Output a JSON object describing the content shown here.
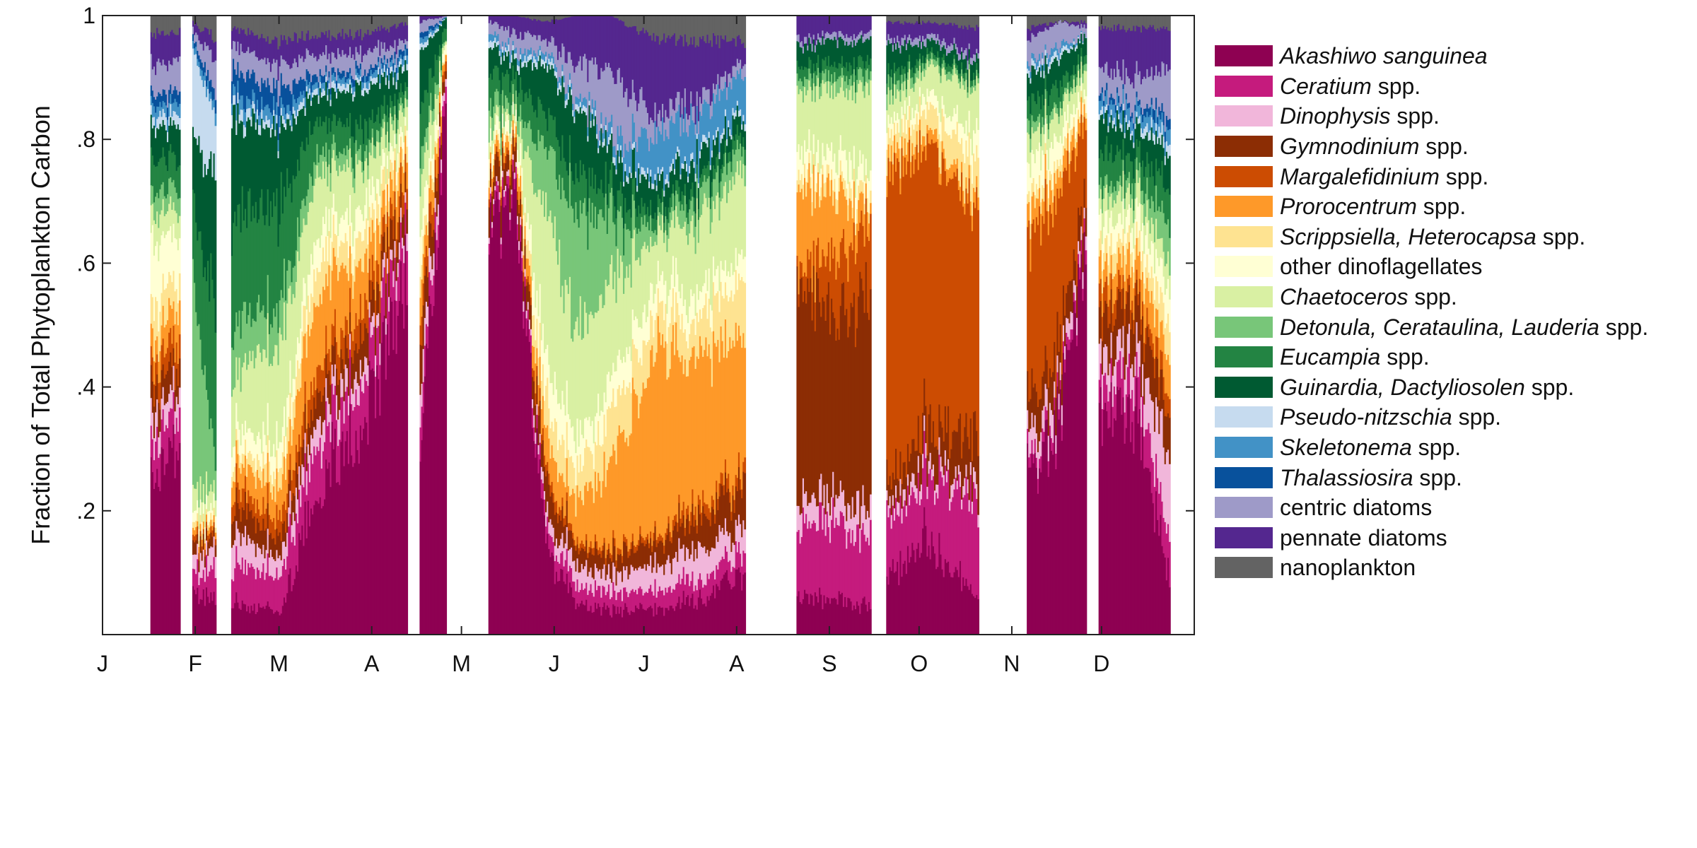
{
  "chart_data": {
    "type": "area",
    "stacked": true,
    "normalized": true,
    "title": "",
    "xlabel": "",
    "ylabel": "Fraction of Total Phytoplankton Carbon",
    "ylim": [
      0,
      1
    ],
    "yticks": [
      0.2,
      0.4,
      0.6,
      0.8,
      1
    ],
    "ytick_labels": [
      ".2",
      ".4",
      ".6",
      ".8",
      "1"
    ],
    "xlim": [
      0,
      365
    ],
    "month_ticks": [
      {
        "day": 0,
        "label": "J"
      },
      {
        "day": 31,
        "label": "F"
      },
      {
        "day": 59,
        "label": "M"
      },
      {
        "day": 90,
        "label": "A"
      },
      {
        "day": 120,
        "label": "M"
      },
      {
        "day": 151,
        "label": "J"
      },
      {
        "day": 181,
        "label": "J"
      },
      {
        "day": 212,
        "label": "A"
      },
      {
        "day": 243,
        "label": "S"
      },
      {
        "day": 273,
        "label": "O"
      },
      {
        "day": 304,
        "label": "N"
      },
      {
        "day": 334,
        "label": "D"
      }
    ],
    "grid": false,
    "legend_position": "right",
    "series": [
      {
        "name": "Akashiwo sanguinea",
        "italic": "Akashiwo sanguinea",
        "suffix": "",
        "color": "#8E0152"
      },
      {
        "name": "Ceratium spp.",
        "italic": "Ceratium",
        "suffix": " spp.",
        "color": "#C51B7D"
      },
      {
        "name": "Dinophysis spp.",
        "italic": "Dinophysis",
        "suffix": " spp.",
        "color": "#F1B6DA"
      },
      {
        "name": "Gymnodinium spp.",
        "italic": "Gymnodinium",
        "suffix": " spp.",
        "color": "#8C2D04"
      },
      {
        "name": "Margalefidinium spp.",
        "italic": "Margalefidinium",
        "suffix": " spp.",
        "color": "#CC4C02"
      },
      {
        "name": "Prorocentrum spp.",
        "italic": "Prorocentrum",
        "suffix": " spp.",
        "color": "#FE9929"
      },
      {
        "name": "Scrippsiella, Heterocapsa spp.",
        "italic": "Scrippsiella, Heterocapsa",
        "suffix": " spp.",
        "color": "#FEE391"
      },
      {
        "name": "other dinoflagellates",
        "italic": "",
        "suffix": "other dinoflagellates",
        "color": "#FFFFD4"
      },
      {
        "name": "Chaetoceros spp.",
        "italic": "Chaetoceros",
        "suffix": " spp.",
        "color": "#D9F0A3"
      },
      {
        "name": "Detonula, Cerataulina, Lauderia spp.",
        "italic": "Detonula, Cerataulina, Lauderia",
        "suffix": " spp.",
        "color": "#78C679"
      },
      {
        "name": "Eucampia spp.",
        "italic": "Eucampia",
        "suffix": " spp.",
        "color": "#238443"
      },
      {
        "name": "Guinardia, Dactyliosolen spp.",
        "italic": "Guinardia, Dactyliosolen",
        "suffix": " spp.",
        "color": "#005A32"
      },
      {
        "name": "Pseudo-nitzschia spp.",
        "italic": "Pseudo-nitzschia",
        "suffix": " spp.",
        "color": "#C6DBEF"
      },
      {
        "name": "Skeletonema spp.",
        "italic": "Skeletonema",
        "suffix": " spp.",
        "color": "#4292C6"
      },
      {
        "name": "Thalassiosira spp.",
        "italic": "Thalassiosira",
        "suffix": " spp.",
        "color": "#08519C"
      },
      {
        "name": "centric diatoms",
        "italic": "",
        "suffix": "centric diatoms",
        "color": "#9E9AC8"
      },
      {
        "name": "pennate diatoms",
        "italic": "",
        "suffix": "pennate diatoms",
        "color": "#54278F"
      },
      {
        "name": "nanoplankton",
        "italic": "",
        "suffix": "nanoplankton",
        "color": "#636363"
      }
    ],
    "segments": [
      {
        "start": 16,
        "end": 26
      },
      {
        "start": 30,
        "end": 38
      },
      {
        "start": 43,
        "end": 102
      },
      {
        "start": 106,
        "end": 115
      },
      {
        "start": 129,
        "end": 215
      },
      {
        "start": 232,
        "end": 257
      },
      {
        "start": 262,
        "end": 293
      },
      {
        "start": 309,
        "end": 329
      },
      {
        "start": 333,
        "end": 357
      }
    ],
    "profiles": [
      {
        "day": 16,
        "values": [
          0.26,
          0.06,
          0.04,
          0.06,
          0.04,
          0.04,
          0.06,
          0.1,
          0.05,
          0.04,
          0.06,
          0.06,
          0.02,
          0.02,
          0.02,
          0.05,
          0.05,
          0.03
        ]
      },
      {
        "day": 26,
        "values": [
          0.35,
          0.06,
          0.04,
          0.04,
          0.04,
          0.06,
          0.05,
          0.08,
          0.04,
          0.04,
          0.05,
          0.06,
          0.02,
          0.02,
          0.02,
          0.05,
          0.05,
          0.03
        ]
      },
      {
        "day": 30,
        "values": [
          0.06,
          0.03,
          0.03,
          0.02,
          0.01,
          0.01,
          0.01,
          0.02,
          0.04,
          0.36,
          0.1,
          0.1,
          0.16,
          0.01,
          0.01,
          0.01,
          0.01,
          0.01
        ]
      },
      {
        "day": 38,
        "values": [
          0.06,
          0.05,
          0.03,
          0.02,
          0.01,
          0.01,
          0.01,
          0.02,
          0.03,
          0.02,
          0.28,
          0.22,
          0.07,
          0.02,
          0.02,
          0.06,
          0.04,
          0.04
        ]
      },
      {
        "day": 43,
        "values": [
          0.05,
          0.06,
          0.05,
          0.05,
          0.03,
          0.04,
          0.02,
          0.04,
          0.08,
          0.08,
          0.17,
          0.16,
          0.02,
          0.02,
          0.04,
          0.04,
          0.03,
          0.02
        ]
      },
      {
        "day": 59,
        "values": [
          0.04,
          0.06,
          0.03,
          0.03,
          0.03,
          0.05,
          0.03,
          0.04,
          0.16,
          0.06,
          0.16,
          0.12,
          0.01,
          0.02,
          0.04,
          0.04,
          0.04,
          0.04
        ]
      },
      {
        "day": 72,
        "values": [
          0.24,
          0.08,
          0.04,
          0.04,
          0.04,
          0.12,
          0.05,
          0.05,
          0.1,
          0.03,
          0.05,
          0.04,
          0.01,
          0.01,
          0.01,
          0.03,
          0.03,
          0.03
        ]
      },
      {
        "day": 88,
        "values": [
          0.36,
          0.07,
          0.03,
          0.05,
          0.04,
          0.07,
          0.04,
          0.04,
          0.06,
          0.02,
          0.04,
          0.06,
          0.01,
          0.01,
          0.01,
          0.03,
          0.03,
          0.03
        ]
      },
      {
        "day": 102,
        "values": [
          0.6,
          0.08,
          0.02,
          0.04,
          0.03,
          0.03,
          0.02,
          0.02,
          0.03,
          0.01,
          0.02,
          0.03,
          0.01,
          0.01,
          0.01,
          0.01,
          0.03,
          0.01
        ]
      },
      {
        "day": 106,
        "values": [
          0.3,
          0.05,
          0.05,
          0.08,
          0.04,
          0.05,
          0.03,
          0.06,
          0.08,
          0.04,
          0.08,
          0.08,
          0.01,
          0.01,
          0.01,
          0.02,
          0.01,
          0.0
        ]
      },
      {
        "day": 115,
        "values": [
          0.9,
          0.02,
          0.01,
          0.01,
          0.01,
          0.01,
          0.0,
          0.01,
          0.0,
          0.0,
          0.01,
          0.01,
          0.0,
          0.0,
          0.0,
          0.0,
          0.0,
          0.0
        ]
      },
      {
        "day": 129,
        "values": [
          0.66,
          0.02,
          0.01,
          0.04,
          0.01,
          0.02,
          0.01,
          0.03,
          0.02,
          0.04,
          0.05,
          0.04,
          0.01,
          0.01,
          0.0,
          0.02,
          0.01,
          0.0
        ]
      },
      {
        "day": 138,
        "values": [
          0.7,
          0.02,
          0.01,
          0.03,
          0.01,
          0.02,
          0.01,
          0.02,
          0.01,
          0.02,
          0.04,
          0.03,
          0.01,
          0.01,
          0.0,
          0.03,
          0.03,
          0.0
        ]
      },
      {
        "day": 148,
        "values": [
          0.14,
          0.03,
          0.02,
          0.05,
          0.02,
          0.05,
          0.06,
          0.07,
          0.24,
          0.1,
          0.06,
          0.08,
          0.01,
          0.01,
          0.0,
          0.02,
          0.03,
          0.01
        ]
      },
      {
        "day": 158,
        "values": [
          0.05,
          0.03,
          0.03,
          0.03,
          0.01,
          0.06,
          0.05,
          0.05,
          0.18,
          0.2,
          0.06,
          0.1,
          0.01,
          0.01,
          0.0,
          0.05,
          0.08,
          0.0
        ]
      },
      {
        "day": 170,
        "values": [
          0.04,
          0.03,
          0.03,
          0.03,
          0.01,
          0.14,
          0.08,
          0.05,
          0.16,
          0.1,
          0.04,
          0.06,
          0.01,
          0.02,
          0.0,
          0.1,
          0.1,
          0.0
        ]
      },
      {
        "day": 185,
        "values": [
          0.04,
          0.03,
          0.04,
          0.04,
          0.01,
          0.3,
          0.06,
          0.05,
          0.08,
          0.02,
          0.02,
          0.04,
          0.01,
          0.07,
          0.0,
          0.03,
          0.12,
          0.04
        ]
      },
      {
        "day": 200,
        "values": [
          0.06,
          0.03,
          0.05,
          0.05,
          0.02,
          0.24,
          0.06,
          0.04,
          0.12,
          0.04,
          0.02,
          0.04,
          0.01,
          0.06,
          0.0,
          0.02,
          0.1,
          0.04
        ]
      },
      {
        "day": 215,
        "values": [
          0.1,
          0.04,
          0.04,
          0.07,
          0.02,
          0.2,
          0.1,
          0.04,
          0.14,
          0.04,
          0.02,
          0.03,
          0.01,
          0.06,
          0.0,
          0.02,
          0.03,
          0.04
        ]
      },
      {
        "day": 232,
        "values": [
          0.06,
          0.12,
          0.04,
          0.34,
          0.02,
          0.14,
          0.02,
          0.04,
          0.1,
          0.02,
          0.02,
          0.03,
          0.0,
          0.0,
          0.0,
          0.01,
          0.04,
          0.0
        ]
      },
      {
        "day": 245,
        "values": [
          0.06,
          0.12,
          0.04,
          0.3,
          0.1,
          0.1,
          0.02,
          0.04,
          0.1,
          0.02,
          0.02,
          0.04,
          0.0,
          0.0,
          0.0,
          0.01,
          0.03,
          0.0
        ]
      },
      {
        "day": 257,
        "values": [
          0.04,
          0.12,
          0.05,
          0.38,
          0.1,
          0.02,
          0.02,
          0.04,
          0.12,
          0.02,
          0.02,
          0.03,
          0.0,
          0.0,
          0.0,
          0.01,
          0.03,
          0.0
        ]
      },
      {
        "day": 262,
        "values": [
          0.08,
          0.1,
          0.02,
          0.04,
          0.5,
          0.03,
          0.03,
          0.02,
          0.04,
          0.02,
          0.02,
          0.05,
          0.0,
          0.0,
          0.0,
          0.01,
          0.03,
          0.01
        ]
      },
      {
        "day": 275,
        "values": [
          0.16,
          0.1,
          0.02,
          0.06,
          0.46,
          0.02,
          0.04,
          0.02,
          0.04,
          0.01,
          0.01,
          0.02,
          0.0,
          0.0,
          0.0,
          0.01,
          0.02,
          0.01
        ]
      },
      {
        "day": 293,
        "values": [
          0.05,
          0.16,
          0.02,
          0.08,
          0.38,
          0.02,
          0.06,
          0.04,
          0.08,
          0.01,
          0.01,
          0.02,
          0.0,
          0.0,
          0.0,
          0.01,
          0.04,
          0.02
        ]
      },
      {
        "day": 309,
        "values": [
          0.26,
          0.02,
          0.04,
          0.06,
          0.26,
          0.04,
          0.02,
          0.06,
          0.04,
          0.02,
          0.04,
          0.04,
          0.01,
          0.01,
          0.0,
          0.04,
          0.02,
          0.02
        ]
      },
      {
        "day": 320,
        "values": [
          0.36,
          0.02,
          0.03,
          0.06,
          0.24,
          0.04,
          0.02,
          0.04,
          0.04,
          0.01,
          0.03,
          0.04,
          0.01,
          0.01,
          0.0,
          0.04,
          0.0,
          0.01
        ]
      },
      {
        "day": 329,
        "values": [
          0.66,
          0.02,
          0.02,
          0.04,
          0.1,
          0.02,
          0.01,
          0.02,
          0.03,
          0.01,
          0.01,
          0.03,
          0.0,
          0.0,
          0.0,
          0.01,
          0.01,
          0.01
        ]
      },
      {
        "day": 333,
        "values": [
          0.34,
          0.05,
          0.05,
          0.06,
          0.04,
          0.04,
          0.04,
          0.04,
          0.04,
          0.02,
          0.06,
          0.06,
          0.01,
          0.02,
          0.01,
          0.04,
          0.06,
          0.02
        ]
      },
      {
        "day": 345,
        "values": [
          0.36,
          0.06,
          0.04,
          0.08,
          0.02,
          0.05,
          0.03,
          0.04,
          0.04,
          0.02,
          0.04,
          0.04,
          0.01,
          0.02,
          0.01,
          0.04,
          0.08,
          0.02
        ]
      },
      {
        "day": 357,
        "values": [
          0.08,
          0.06,
          0.14,
          0.06,
          0.04,
          0.06,
          0.06,
          0.06,
          0.04,
          0.06,
          0.06,
          0.06,
          0.02,
          0.02,
          0.02,
          0.08,
          0.06,
          0.02
        ]
      }
    ]
  }
}
